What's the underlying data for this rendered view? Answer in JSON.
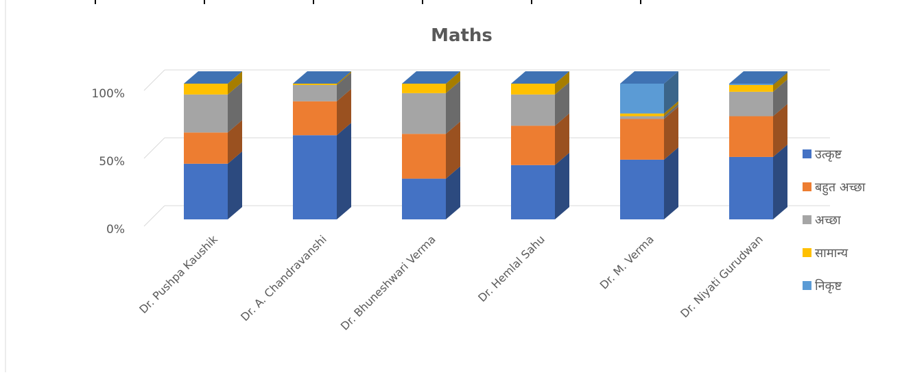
{
  "chart_data": {
    "type": "bar",
    "stacked": "percent",
    "title": "Maths",
    "categories": [
      "Dr. Pushpa Kaushik",
      "Dr. A. Chandravanshi",
      "Dr. Bhuneshwari Verma",
      "Dr. Hemlal Sahu",
      "Dr. M. Verma",
      "Dr. Niyati Gurudwan"
    ],
    "series": [
      {
        "name": "उत्कृष्ट",
        "color": "#4472C4",
        "values": [
          41,
          62,
          30,
          40,
          44,
          46
        ]
      },
      {
        "name": "बहुत अच्छा",
        "color": "#ED7D31",
        "values": [
          23,
          25,
          33,
          29,
          30,
          30
        ]
      },
      {
        "name": "अच्छा",
        "color": "#A5A5A5",
        "values": [
          28,
          12,
          30,
          23,
          2,
          18
        ]
      },
      {
        "name": "सामान्य",
        "color": "#FFC000",
        "values": [
          8,
          1,
          7,
          8,
          2,
          5
        ]
      },
      {
        "name": "निकृष्ट",
        "color": "#5B9BD5",
        "values": [
          0,
          0,
          0,
          0,
          22,
          1
        ]
      }
    ],
    "ylim": [
      0,
      100
    ],
    "yticks": [
      "0%",
      "50%",
      "100%"
    ],
    "grid": true,
    "legend": "right"
  }
}
